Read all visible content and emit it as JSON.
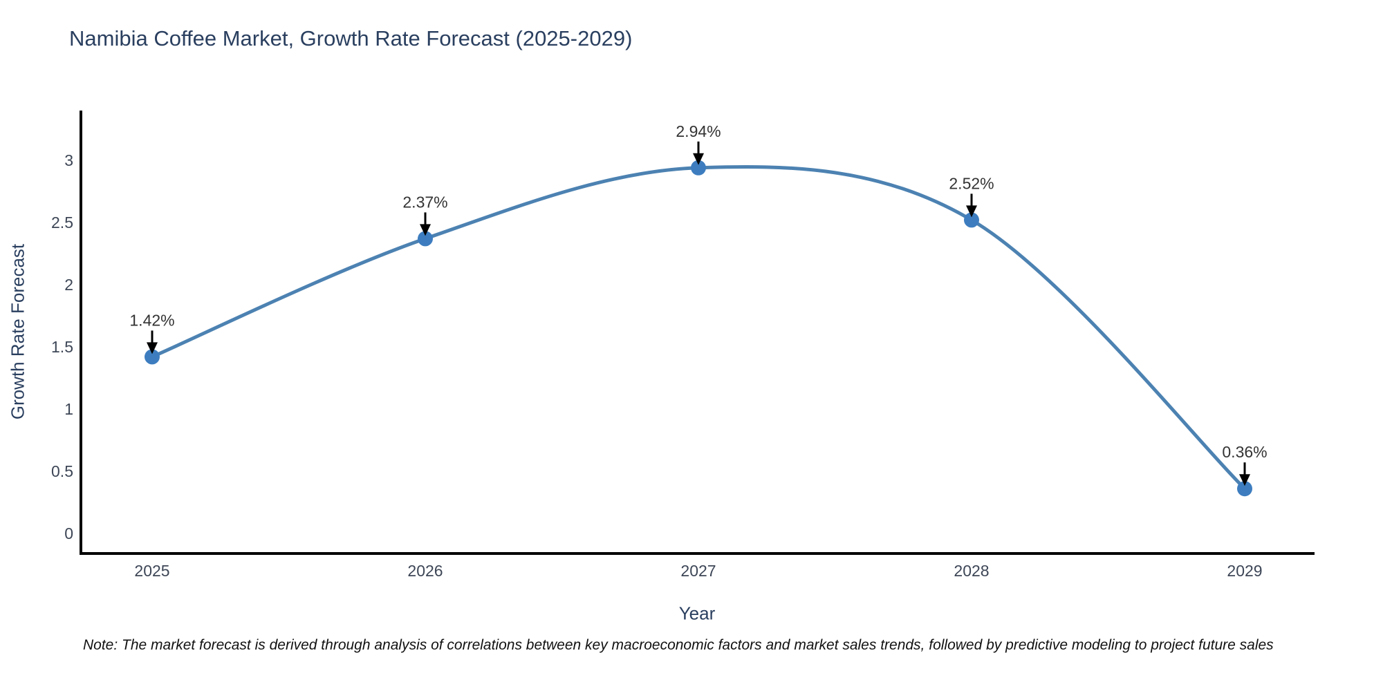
{
  "chart_data": {
    "type": "line",
    "title": "Namibia Coffee Market, Growth Rate Forecast (2025-2029)",
    "xlabel": "Year",
    "ylabel": "Growth Rate Forecast",
    "categories": [
      "2025",
      "2026",
      "2027",
      "2028",
      "2029"
    ],
    "series": [
      {
        "name": "Growth Rate Forecast",
        "values": [
          1.42,
          2.37,
          2.94,
          2.52,
          0.36
        ],
        "point_labels": [
          "1.42%",
          "2.37%",
          "2.94%",
          "2.52%",
          "0.36%"
        ]
      }
    ],
    "y_ticks": [
      "0",
      "0.5",
      "1",
      "1.5",
      "2",
      "2.5",
      "3"
    ],
    "y_tick_values": [
      0,
      0.5,
      1,
      1.5,
      2,
      2.5,
      3
    ],
    "ylim": [
      -0.17,
      3.4
    ],
    "grid": false,
    "legend_position": "none",
    "line_shape": "spline",
    "colors": {
      "line": "#4C82B2",
      "marker": "#3D7DBF",
      "axis": "#000000",
      "arrow": "#000000",
      "title_text": "#2a3f5f",
      "tick_text": "#3d4656"
    }
  },
  "note": "Note: The market forecast is derived through analysis of correlations between key macroeconomic factors and market sales trends, followed by predictive modeling to project future sales"
}
